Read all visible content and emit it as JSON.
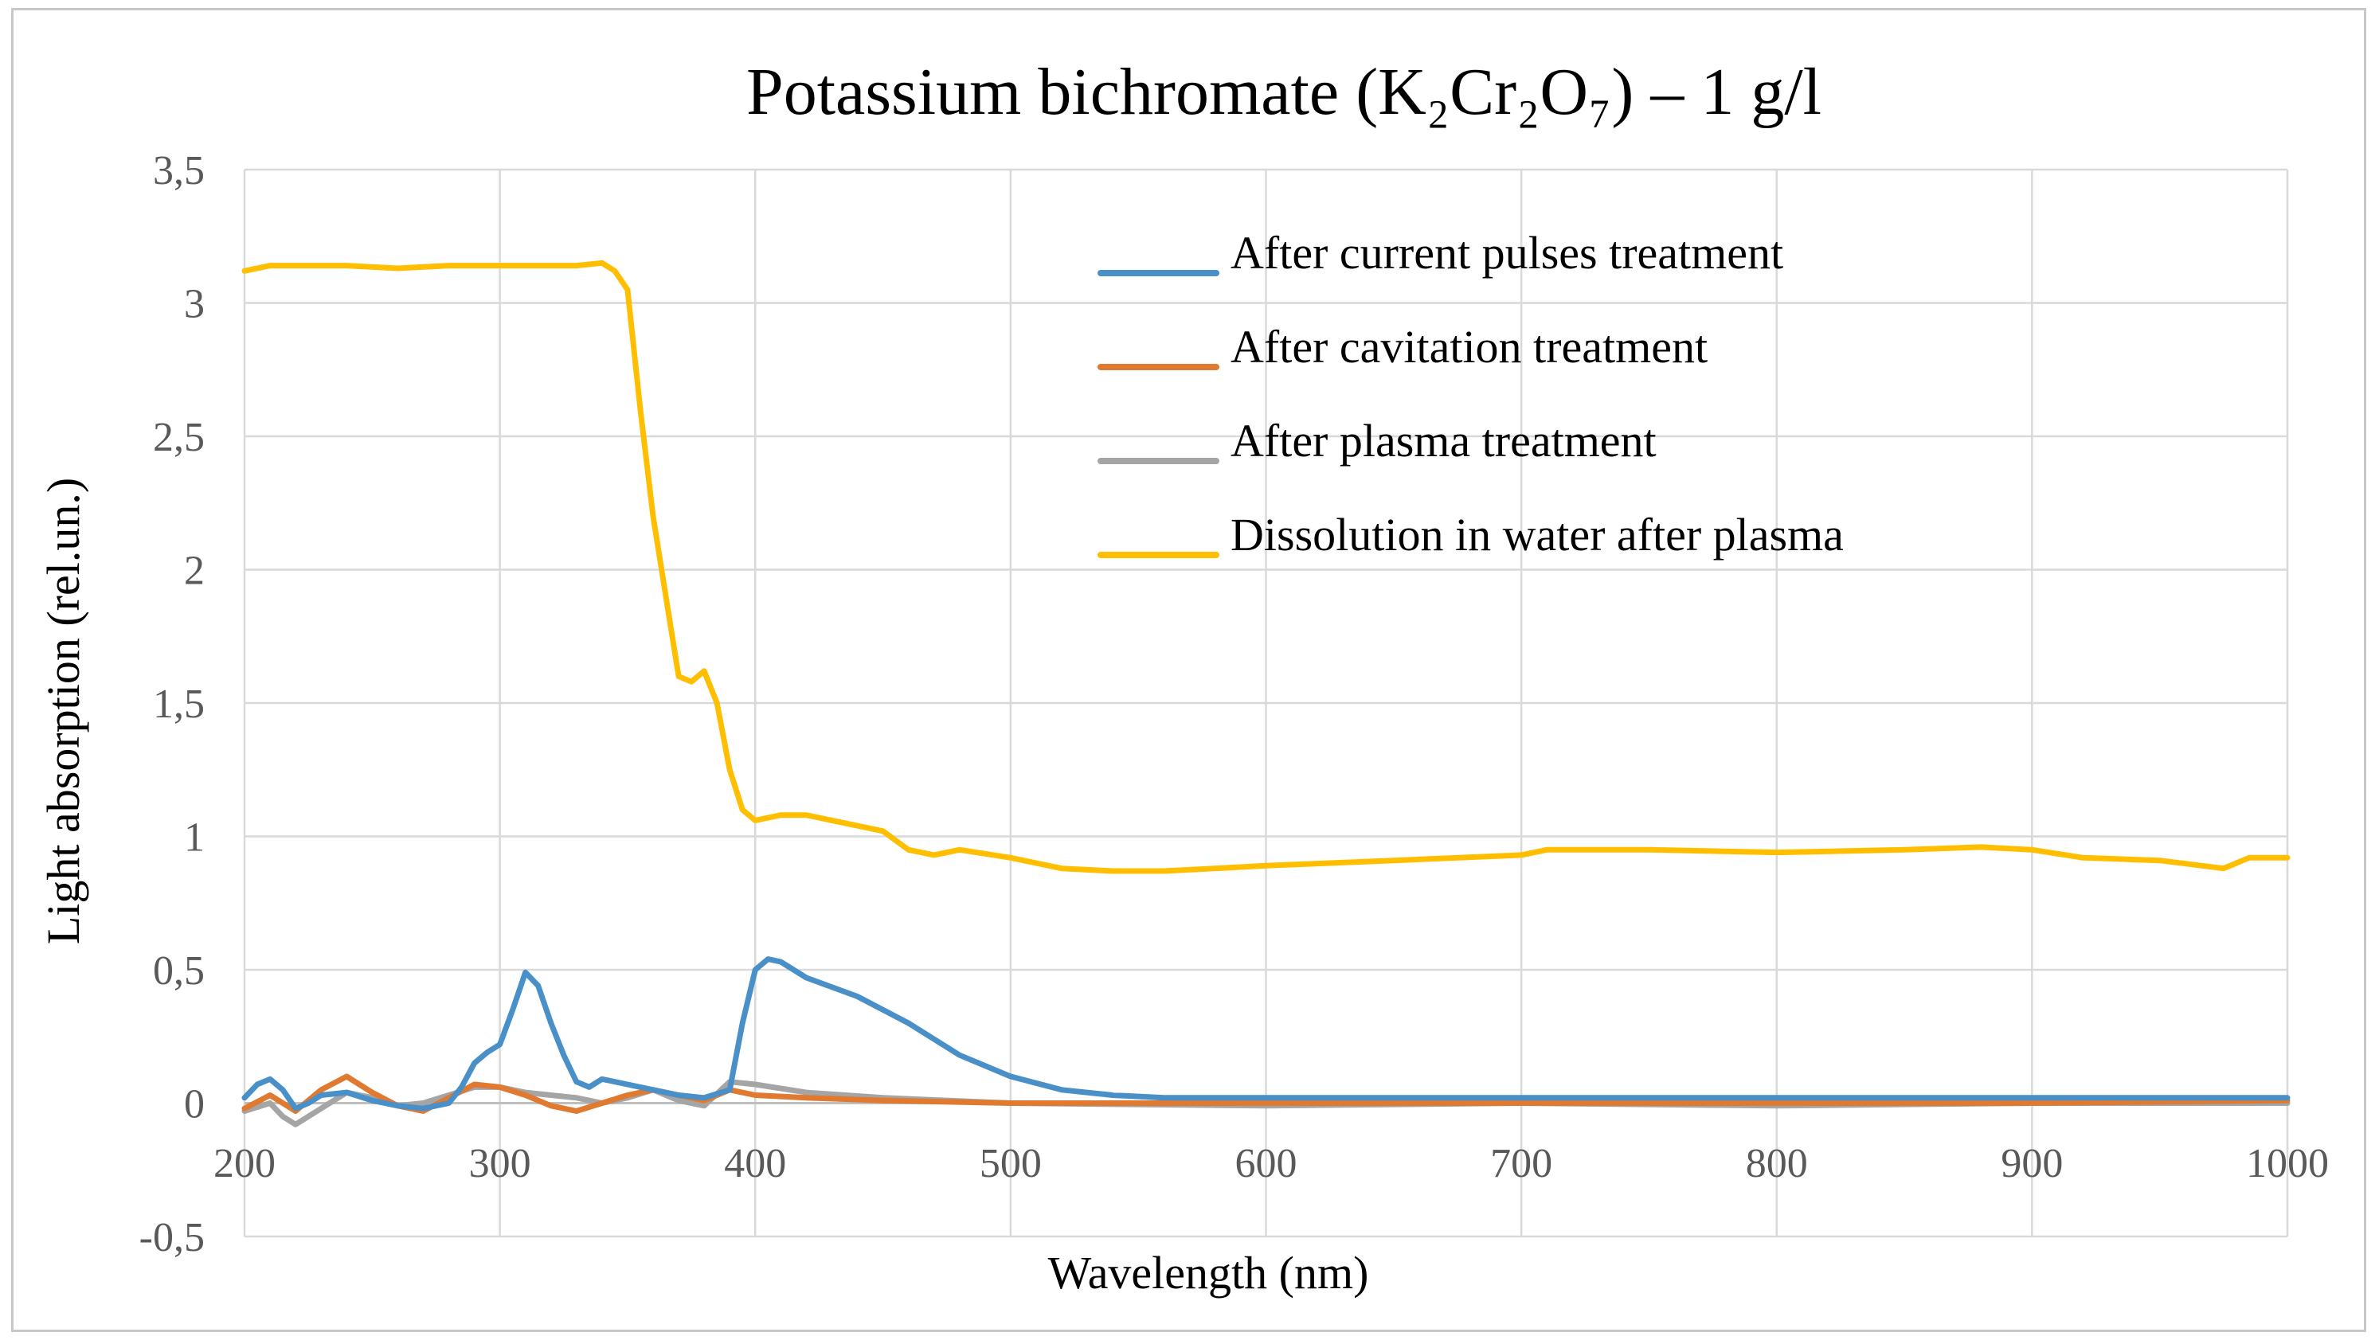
{
  "chart_data": {
    "type": "line",
    "title": "Potassium bichromate (K₂Cr₂O₇) – 1 g/l",
    "xlabel": "Wavelength (nm)",
    "ylabel": "Light absorption (rel.un.)",
    "xlim": [
      200,
      1000
    ],
    "ylim": [
      -0.5,
      3.5
    ],
    "x_ticks": [
      200,
      300,
      400,
      500,
      600,
      700,
      800,
      900,
      1000
    ],
    "y_ticks": [
      -0.5,
      0,
      0.5,
      1,
      1.5,
      2,
      2.5,
      3,
      3.5
    ],
    "x_tick_labels": [
      "200",
      "300",
      "400",
      "500",
      "600",
      "700",
      "800",
      "900",
      "1000"
    ],
    "y_tick_labels": [
      "-0,5",
      "0",
      "0,5",
      "1",
      "1,5",
      "2",
      "2,5",
      "3",
      "3,5"
    ],
    "grid": true,
    "legend_position": "top-right",
    "series": [
      {
        "name": "After current pulses treatment",
        "color": "#4a90c8",
        "points": [
          [
            200,
            0.02
          ],
          [
            205,
            0.07
          ],
          [
            210,
            0.09
          ],
          [
            215,
            0.05
          ],
          [
            220,
            -0.02
          ],
          [
            225,
            0.0
          ],
          [
            230,
            0.03
          ],
          [
            240,
            0.04
          ],
          [
            250,
            0.01
          ],
          [
            260,
            -0.01
          ],
          [
            270,
            -0.02
          ],
          [
            280,
            0.0
          ],
          [
            285,
            0.06
          ],
          [
            290,
            0.15
          ],
          [
            295,
            0.19
          ],
          [
            300,
            0.22
          ],
          [
            305,
            0.35
          ],
          [
            310,
            0.49
          ],
          [
            315,
            0.44
          ],
          [
            320,
            0.3
          ],
          [
            325,
            0.18
          ],
          [
            330,
            0.08
          ],
          [
            335,
            0.06
          ],
          [
            340,
            0.09
          ],
          [
            350,
            0.07
          ],
          [
            360,
            0.05
          ],
          [
            370,
            0.03
          ],
          [
            380,
            0.02
          ],
          [
            390,
            0.05
          ],
          [
            395,
            0.3
          ],
          [
            400,
            0.5
          ],
          [
            405,
            0.54
          ],
          [
            410,
            0.53
          ],
          [
            420,
            0.47
          ],
          [
            440,
            0.4
          ],
          [
            460,
            0.3
          ],
          [
            480,
            0.18
          ],
          [
            500,
            0.1
          ],
          [
            520,
            0.05
          ],
          [
            540,
            0.03
          ],
          [
            560,
            0.02
          ],
          [
            600,
            0.02
          ],
          [
            650,
            0.02
          ],
          [
            700,
            0.02
          ],
          [
            750,
            0.02
          ],
          [
            800,
            0.02
          ],
          [
            850,
            0.02
          ],
          [
            900,
            0.02
          ],
          [
            950,
            0.02
          ],
          [
            1000,
            0.02
          ]
        ]
      },
      {
        "name": "After cavitation treatment",
        "color": "#e07a30",
        "points": [
          [
            200,
            -0.02
          ],
          [
            210,
            0.03
          ],
          [
            220,
            -0.03
          ],
          [
            230,
            0.05
          ],
          [
            240,
            0.1
          ],
          [
            250,
            0.04
          ],
          [
            260,
            -0.01
          ],
          [
            270,
            -0.03
          ],
          [
            280,
            0.02
          ],
          [
            290,
            0.07
          ],
          [
            300,
            0.06
          ],
          [
            310,
            0.03
          ],
          [
            320,
            -0.01
          ],
          [
            330,
            -0.03
          ],
          [
            340,
            0.0
          ],
          [
            350,
            0.03
          ],
          [
            360,
            0.05
          ],
          [
            370,
            0.03
          ],
          [
            380,
            0.01
          ],
          [
            390,
            0.05
          ],
          [
            400,
            0.03
          ],
          [
            420,
            0.02
          ],
          [
            450,
            0.01
          ],
          [
            500,
            0.0
          ],
          [
            600,
            0.0
          ],
          [
            700,
            0.0
          ],
          [
            800,
            0.0
          ],
          [
            900,
            0.0
          ],
          [
            1000,
            0.01
          ]
        ]
      },
      {
        "name": "After plasma treatment",
        "color": "#a5a5a5",
        "points": [
          [
            200,
            -0.03
          ],
          [
            210,
            0.0
          ],
          [
            215,
            -0.05
          ],
          [
            220,
            -0.08
          ],
          [
            230,
            -0.02
          ],
          [
            240,
            0.04
          ],
          [
            250,
            0.02
          ],
          [
            260,
            -0.01
          ],
          [
            270,
            0.0
          ],
          [
            280,
            0.03
          ],
          [
            290,
            0.06
          ],
          [
            300,
            0.06
          ],
          [
            310,
            0.04
          ],
          [
            320,
            0.03
          ],
          [
            330,
            0.02
          ],
          [
            340,
            0.0
          ],
          [
            350,
            0.02
          ],
          [
            360,
            0.05
          ],
          [
            370,
            0.01
          ],
          [
            380,
            -0.01
          ],
          [
            390,
            0.08
          ],
          [
            400,
            0.07
          ],
          [
            420,
            0.04
          ],
          [
            450,
            0.02
          ],
          [
            500,
            0.0
          ],
          [
            600,
            -0.01
          ],
          [
            700,
            0.0
          ],
          [
            800,
            -0.01
          ],
          [
            900,
            0.0
          ],
          [
            1000,
            0.0
          ]
        ]
      },
      {
        "name": "Dissolution in water after plasma",
        "color": "#ffbf00",
        "points": [
          [
            200,
            3.12
          ],
          [
            210,
            3.14
          ],
          [
            240,
            3.14
          ],
          [
            260,
            3.13
          ],
          [
            280,
            3.14
          ],
          [
            300,
            3.14
          ],
          [
            320,
            3.14
          ],
          [
            330,
            3.14
          ],
          [
            340,
            3.15
          ],
          [
            345,
            3.12
          ],
          [
            350,
            3.05
          ],
          [
            355,
            2.6
          ],
          [
            360,
            2.2
          ],
          [
            365,
            1.9
          ],
          [
            370,
            1.6
          ],
          [
            375,
            1.58
          ],
          [
            380,
            1.62
          ],
          [
            385,
            1.5
          ],
          [
            390,
            1.25
          ],
          [
            395,
            1.1
          ],
          [
            400,
            1.06
          ],
          [
            410,
            1.08
          ],
          [
            420,
            1.08
          ],
          [
            430,
            1.06
          ],
          [
            450,
            1.02
          ],
          [
            460,
            0.95
          ],
          [
            470,
            0.93
          ],
          [
            480,
            0.95
          ],
          [
            500,
            0.92
          ],
          [
            520,
            0.88
          ],
          [
            540,
            0.87
          ],
          [
            560,
            0.87
          ],
          [
            580,
            0.88
          ],
          [
            600,
            0.89
          ],
          [
            650,
            0.91
          ],
          [
            700,
            0.93
          ],
          [
            710,
            0.95
          ],
          [
            750,
            0.95
          ],
          [
            800,
            0.94
          ],
          [
            850,
            0.95
          ],
          [
            880,
            0.96
          ],
          [
            900,
            0.95
          ],
          [
            920,
            0.92
          ],
          [
            950,
            0.91
          ],
          [
            975,
            0.88
          ],
          [
            985,
            0.92
          ],
          [
            1000,
            0.92
          ]
        ]
      }
    ]
  }
}
